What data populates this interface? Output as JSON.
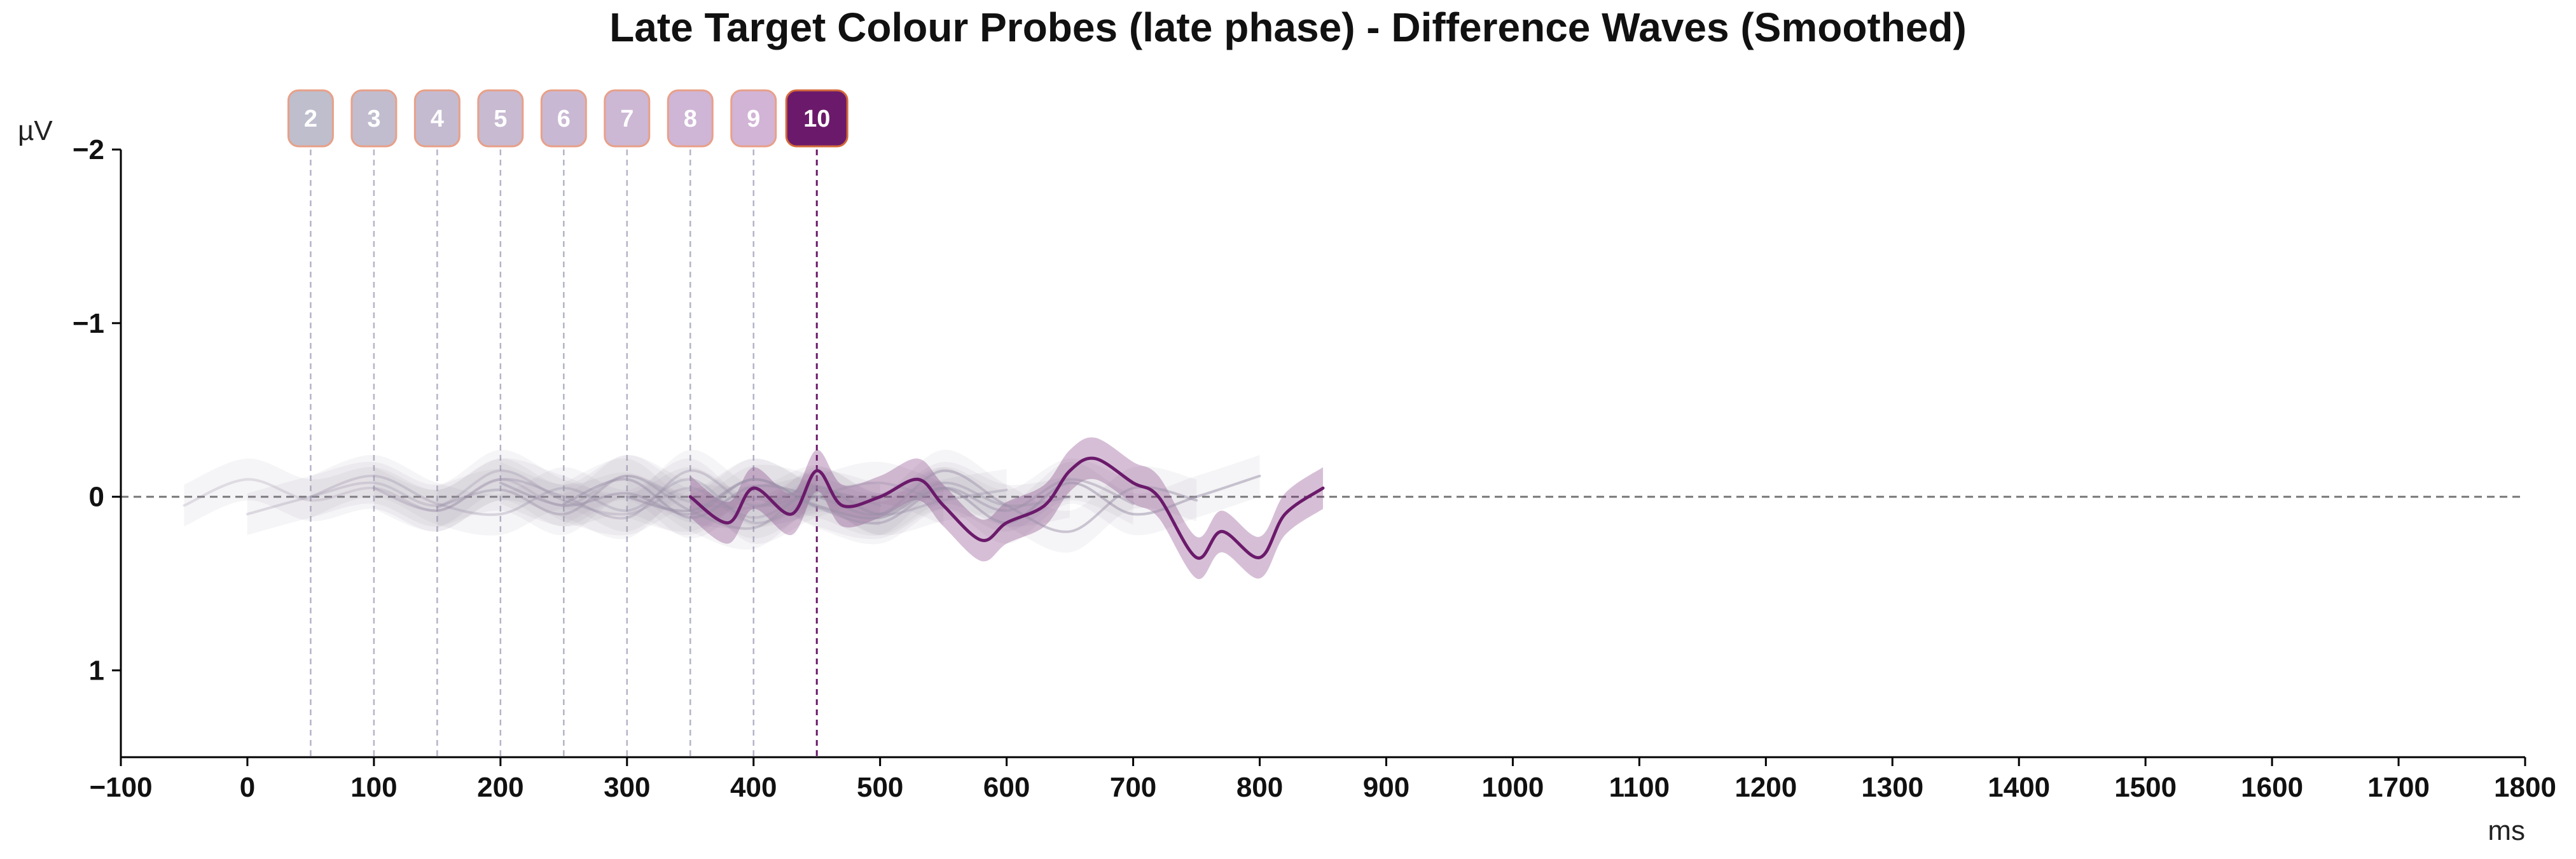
{
  "chart_data": {
    "type": "line",
    "title": "Late Target Colour Probes (late phase) - Difference Waves (Smoothed)",
    "xlabel": "ms",
    "ylabel": "µV",
    "xlim": [
      -100,
      1800
    ],
    "ylim": [
      1.5,
      -2
    ],
    "y_inverted": true,
    "xticks": [
      -100,
      0,
      100,
      200,
      300,
      400,
      500,
      600,
      700,
      800,
      900,
      1000,
      1100,
      1200,
      1300,
      1400,
      1500,
      1600,
      1700,
      1800
    ],
    "yticks": [
      -2,
      -1,
      0,
      1
    ],
    "grid": false,
    "zero_line": true,
    "colors": {
      "highlight": "#6b1a6b",
      "faded": "#9a90a8",
      "badge_border": "#e8a088",
      "zero_line": "#777777"
    },
    "probes": [
      {
        "label": "2",
        "time": 50,
        "highlight": false
      },
      {
        "label": "3",
        "time": 100,
        "highlight": false
      },
      {
        "label": "4",
        "time": 150,
        "highlight": false
      },
      {
        "label": "5",
        "time": 200,
        "highlight": false
      },
      {
        "label": "6",
        "time": 250,
        "highlight": false
      },
      {
        "label": "7",
        "time": 300,
        "highlight": false
      },
      {
        "label": "8",
        "time": 350,
        "highlight": false
      },
      {
        "label": "9",
        "time": 400,
        "highlight": false
      },
      {
        "label": "10",
        "time": 450,
        "highlight": true
      }
    ],
    "series": [
      {
        "probe": "2",
        "x": [
          -50,
          0,
          50,
          100,
          150,
          200,
          250,
          300,
          350,
          400,
          450
        ],
        "values": [
          0.05,
          -0.1,
          0.02,
          -0.05,
          0.08,
          -0.1,
          0.05,
          -0.12,
          0.03,
          0.06,
          -0.02
        ]
      },
      {
        "probe": "3",
        "x": [
          0,
          50,
          100,
          150,
          200,
          250,
          300,
          350,
          400,
          450,
          500
        ],
        "values": [
          0.1,
          0.0,
          -0.08,
          0.05,
          -0.15,
          0.02,
          0.1,
          -0.05,
          0.12,
          -0.03,
          0.05
        ]
      },
      {
        "probe": "4",
        "x": [
          50,
          100,
          150,
          200,
          250,
          300,
          350,
          400,
          450,
          500,
          550
        ],
        "values": [
          0.0,
          -0.12,
          0.04,
          0.1,
          -0.05,
          0.08,
          -0.1,
          0.15,
          0.0,
          -0.08,
          0.04
        ]
      },
      {
        "probe": "5",
        "x": [
          100,
          150,
          200,
          250,
          300,
          350,
          400,
          450,
          500,
          550,
          600
        ],
        "values": [
          -0.05,
          0.08,
          -0.1,
          0.0,
          0.12,
          -0.15,
          0.05,
          -0.06,
          0.1,
          0.02,
          -0.04
        ]
      },
      {
        "probe": "6",
        "x": [
          150,
          200,
          250,
          300,
          350,
          400,
          450,
          500,
          550,
          600,
          650
        ],
        "values": [
          0.06,
          -0.04,
          0.1,
          -0.12,
          0.08,
          0.18,
          -0.05,
          0.1,
          -0.08,
          0.05,
          0.0
        ]
      },
      {
        "probe": "7",
        "x": [
          200,
          250,
          300,
          350,
          400,
          450,
          500,
          550,
          600,
          650,
          700
        ],
        "values": [
          -0.08,
          0.05,
          -0.02,
          0.1,
          -0.1,
          0.06,
          0.15,
          -0.05,
          0.08,
          -0.1,
          0.04
        ]
      },
      {
        "probe": "8",
        "x": [
          250,
          300,
          350,
          400,
          450,
          500,
          550,
          600,
          650,
          700,
          750
        ],
        "values": [
          0.04,
          -0.1,
          0.12,
          -0.06,
          0.0,
          0.1,
          -0.15,
          0.05,
          0.2,
          -0.05,
          0.02
        ]
      },
      {
        "probe": "9",
        "x": [
          300,
          350,
          400,
          450,
          500,
          550,
          600,
          650,
          700,
          750,
          800
        ],
        "values": [
          0.0,
          0.08,
          -0.1,
          0.05,
          0.12,
          -0.05,
          0.15,
          -0.08,
          0.1,
          0.0,
          -0.12
        ]
      },
      {
        "probe": "10",
        "x": [
          350,
          380,
          400,
          430,
          450,
          470,
          500,
          530,
          550,
          580,
          600,
          630,
          650,
          670,
          700,
          720,
          750,
          770,
          800,
          820,
          850
        ],
        "values": [
          0.0,
          0.15,
          -0.05,
          0.1,
          -0.15,
          0.05,
          0.0,
          -0.1,
          0.05,
          0.25,
          0.15,
          0.05,
          -0.15,
          -0.22,
          -0.08,
          0.0,
          0.35,
          0.2,
          0.35,
          0.1,
          -0.05
        ]
      }
    ]
  }
}
